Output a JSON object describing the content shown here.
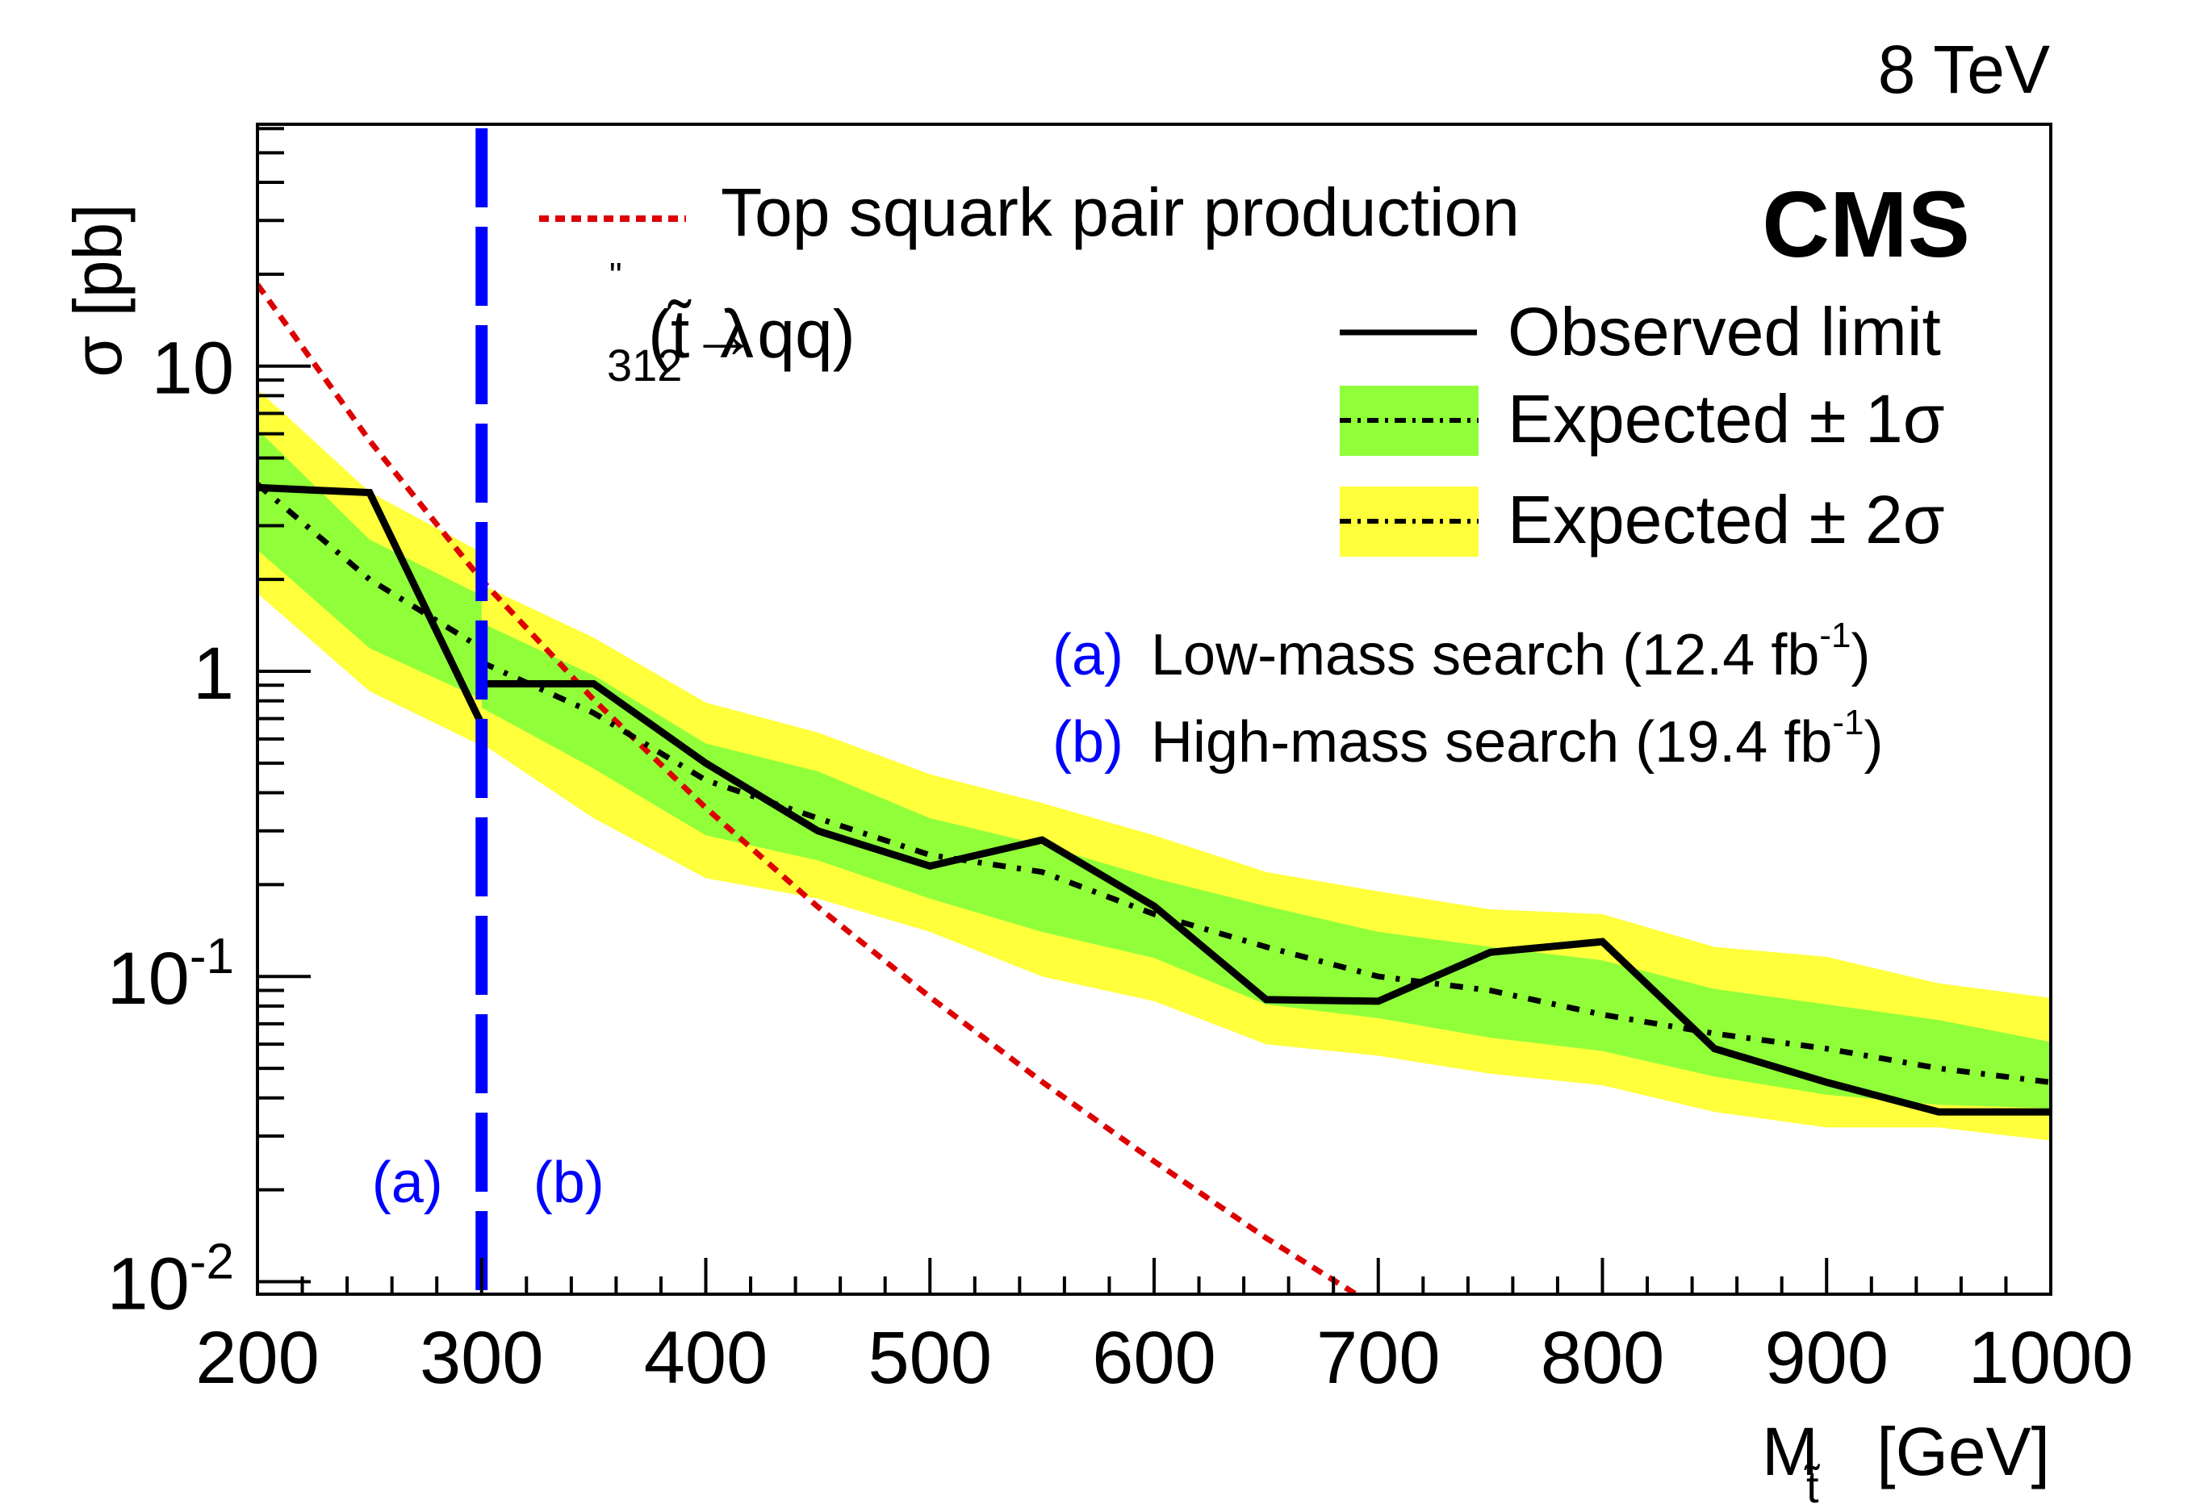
{
  "chart_data": {
    "type": "line",
    "title": "",
    "energy_label": "8 TeV",
    "experiment_label": "CMS",
    "xlabel": "M",
    "xlabel_sub": "t̃",
    "xlabel_unit": "[GeV]",
    "ylabel": "σ [pb]",
    "xlim": [
      200,
      1000
    ],
    "ylim": [
      0.0091,
      62
    ],
    "yscale": "log",
    "grid": false,
    "x_ticks": [
      200,
      300,
      400,
      500,
      600,
      700,
      800,
      900,
      1000
    ],
    "x_tick_labels": [
      "200",
      "300",
      "400",
      "500",
      "600",
      "700",
      "800",
      "900",
      "1000"
    ],
    "y_ticks": [
      {
        "value": 10,
        "base": "10",
        "exp": ""
      },
      {
        "value": 1,
        "base": "1",
        "exp": ""
      },
      {
        "value": 0.1,
        "base": "10",
        "exp": "-1"
      },
      {
        "value": 0.01,
        "base": "10",
        "exp": "-2"
      }
    ],
    "divider": {
      "x": 300,
      "label_left": "(a)",
      "label_right": "(b)",
      "color": "#0000ff"
    },
    "colors": {
      "observed": "#000000",
      "expected": "#000000",
      "band_1sigma": "#90ff3a",
      "band_2sigma": "#ffff3c",
      "theory": "#dd0000",
      "divider": "#0000ff",
      "search_tag": "#0000ff"
    },
    "segments": [
      {
        "name": "Low-mass search",
        "x": [
          200,
          250,
          300
        ],
        "observed": [
          4.0,
          3.85,
          0.67
        ],
        "expected": [
          4.1,
          2.0,
          1.19
        ],
        "band_1sigma_low": [
          2.5,
          1.19,
          0.81
        ],
        "band_1sigma_high": [
          6.2,
          2.7,
          1.77
        ],
        "band_2sigma_low": [
          1.8,
          0.86,
          0.57
        ],
        "band_2sigma_high": [
          8.4,
          3.87,
          2.45
        ]
      },
      {
        "name": "High-mass search",
        "x": [
          300,
          350,
          400,
          450,
          500,
          550,
          600,
          650,
          700,
          750,
          800,
          850,
          900,
          950,
          1000
        ],
        "observed": [
          0.91,
          0.91,
          0.5,
          0.3,
          0.23,
          0.28,
          0.17,
          0.084,
          0.083,
          0.12,
          0.13,
          0.058,
          0.045,
          0.036,
          0.036
        ],
        "expected": [
          1.07,
          0.73,
          0.44,
          0.33,
          0.25,
          0.22,
          0.16,
          0.125,
          0.1,
          0.09,
          0.075,
          0.065,
          0.058,
          0.05,
          0.045
        ],
        "band_1sigma_low": [
          0.76,
          0.48,
          0.29,
          0.24,
          0.18,
          0.14,
          0.115,
          0.081,
          0.073,
          0.063,
          0.057,
          0.047,
          0.041,
          0.038,
          0.037
        ],
        "band_1sigma_high": [
          1.44,
          0.97,
          0.58,
          0.47,
          0.33,
          0.27,
          0.21,
          0.17,
          0.14,
          0.125,
          0.113,
          0.091,
          0.081,
          0.072,
          0.061
        ],
        "band_2sigma_low": [
          0.58,
          0.33,
          0.21,
          0.18,
          0.14,
          0.1,
          0.083,
          0.06,
          0.055,
          0.048,
          0.044,
          0.036,
          0.032,
          0.032,
          0.029
        ],
        "band_2sigma_high": [
          1.92,
          1.29,
          0.79,
          0.63,
          0.46,
          0.37,
          0.29,
          0.22,
          0.19,
          0.166,
          0.16,
          0.125,
          0.116,
          0.095,
          0.085
        ]
      }
    ],
    "theory": {
      "name": "Top squark pair production",
      "x": [
        200,
        250,
        300,
        350,
        400,
        450,
        500,
        550,
        600,
        650,
        690
      ],
      "values": [
        18.5,
        5.7,
        1.99,
        0.807,
        0.357,
        0.169,
        0.0856,
        0.0452,
        0.0248,
        0.0139,
        0.0091
      ]
    },
    "legend": {
      "theory_label": "Top squark pair production",
      "model_lambda": "λ",
      "model_sup": "\"",
      "model_sub": "312",
      "model_decay": "(t̃→qq)",
      "observed_label": "Observed limit",
      "expected_1sigma_label": "Expected ± 1σ",
      "expected_2sigma_label": "Expected ± 2σ",
      "search_a_tag": "(a)",
      "search_a_label": "Low-mass search (12.4 fb",
      "search_a_sup": "-1",
      "search_b_tag": "(b)",
      "search_b_label": "High-mass search (19.4 fb",
      "search_b_sup": "-1",
      "close_paren": ")"
    }
  }
}
